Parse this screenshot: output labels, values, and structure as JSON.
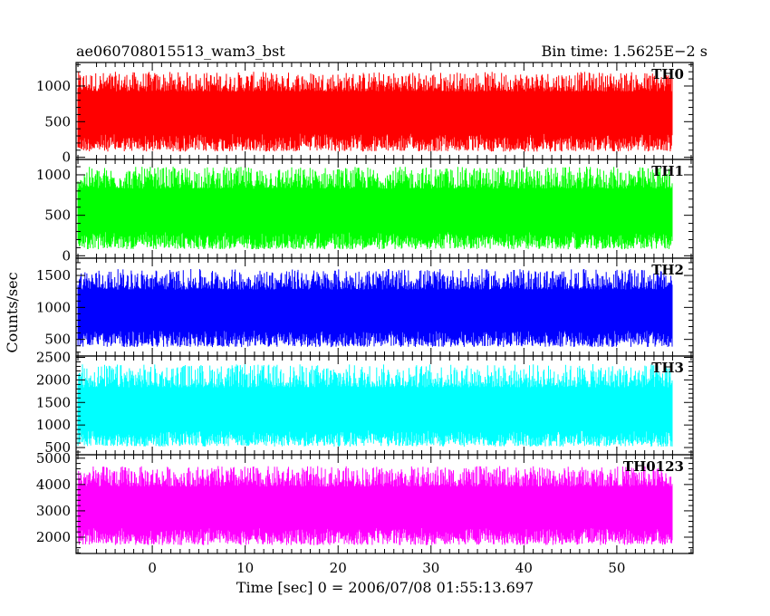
{
  "header": {
    "title": "ae060708015513_wam3_bst",
    "bin_time": "Bin time: 1.5625E−2 s"
  },
  "y_axis_label": "Counts/sec",
  "x_axis_label": "Time [sec] 0 = 2006/07/08 01:55:13.697",
  "chart_data": {
    "type": "line",
    "xlim": [
      -8.2,
      58.2
    ],
    "data_x_range": [
      -8,
      56
    ],
    "x_ticks": [
      0,
      10,
      20,
      30,
      40,
      50
    ],
    "x_tick_labels": [
      "0",
      "10",
      "20",
      "30",
      "40",
      "50"
    ],
    "grid": false,
    "panels": [
      {
        "name": "TH0",
        "color": "#ff0000",
        "ylim": [
          -30,
          1330
        ],
        "yticks": [
          0,
          500,
          1000
        ],
        "ytick_labels": [
          "0",
          "500",
          "1000"
        ],
        "mean": 650,
        "envelope": [
          80,
          1200
        ]
      },
      {
        "name": "TH1",
        "color": "#00ff00",
        "ylim": [
          -30,
          1190
        ],
        "yticks": [
          0,
          500,
          1000
        ],
        "ytick_labels": [
          "0",
          "500",
          "1000"
        ],
        "mean": 560,
        "envelope": [
          80,
          1100
        ]
      },
      {
        "name": "TH2",
        "color": "#0000ff",
        "ylim": [
          240,
          1770
        ],
        "yticks": [
          500,
          1000,
          1500
        ],
        "ytick_labels": [
          "500",
          "1000",
          "1500"
        ],
        "mean": 960,
        "envelope": [
          380,
          1600
        ]
      },
      {
        "name": "TH3",
        "color": "#00ffff",
        "ylim": [
          340,
          2530
        ],
        "yticks": [
          500,
          1000,
          1500,
          2000,
          2500
        ],
        "ytick_labels": [
          "500",
          "1000",
          "1500",
          "2000",
          "2500"
        ],
        "mean": 1320,
        "envelope": [
          520,
          2350
        ]
      },
      {
        "name": "TH0123",
        "color": "#ff00ff",
        "ylim": [
          1380,
          5130
        ],
        "yticks": [
          2000,
          3000,
          4000,
          5000
        ],
        "ytick_labels": [
          "2000",
          "3000",
          "4000",
          "5000"
        ],
        "mean": 3150,
        "envelope": [
          1700,
          4700
        ]
      }
    ]
  }
}
